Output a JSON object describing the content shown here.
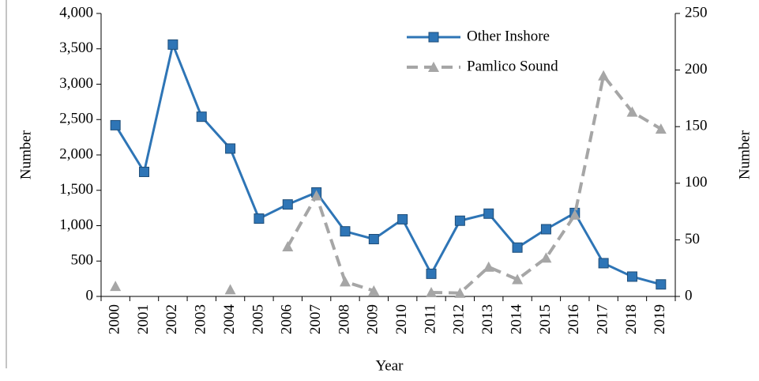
{
  "chart_data": {
    "type": "line",
    "x_label": "Year",
    "y_label": "Number",
    "y2_label": "Number",
    "categories": [
      "2000",
      "2001",
      "2002",
      "2003",
      "2004",
      "2005",
      "2006",
      "2007",
      "2008",
      "2009",
      "2010",
      "2011",
      "2012",
      "2013",
      "2014",
      "2015",
      "2016",
      "2017",
      "2018",
      "2019"
    ],
    "series": [
      {
        "name": "Other Inshore",
        "color": "#2e75b6",
        "marker": "square",
        "dash": false,
        "axis": "y",
        "values": [
          2420,
          1760,
          3560,
          2540,
          2090,
          1100,
          1300,
          1470,
          920,
          810,
          1090,
          320,
          1070,
          1170,
          690,
          950,
          1180,
          470,
          280,
          170
        ]
      },
      {
        "name": "Pamlico Sound",
        "color": "#a6a6a6",
        "marker": "triangle",
        "dash": true,
        "axis": "y2",
        "values": [
          9,
          null,
          null,
          null,
          6,
          null,
          44,
          89,
          13,
          5,
          null,
          3.5,
          3,
          26,
          15,
          34,
          72,
          195,
          163,
          148
        ]
      }
    ],
    "ylim": [
      0,
      4000
    ],
    "yticks": [
      0,
      500,
      {
        "value": 1000,
        "label": "1,000"
      },
      {
        "value": 1500,
        "label": "1,500"
      },
      {
        "value": 2000,
        "label": "2,000"
      },
      {
        "value": 2500,
        "label": "2,500"
      },
      {
        "value": 3000,
        "label": "3,000"
      },
      {
        "value": 3500,
        "label": "3,500"
      },
      {
        "value": 4000,
        "label": "4,000"
      }
    ],
    "y2lim": [
      0,
      250
    ],
    "y2ticks": [
      0,
      50,
      100,
      150,
      200,
      250
    ],
    "grid": false,
    "legend": "upper right"
  }
}
